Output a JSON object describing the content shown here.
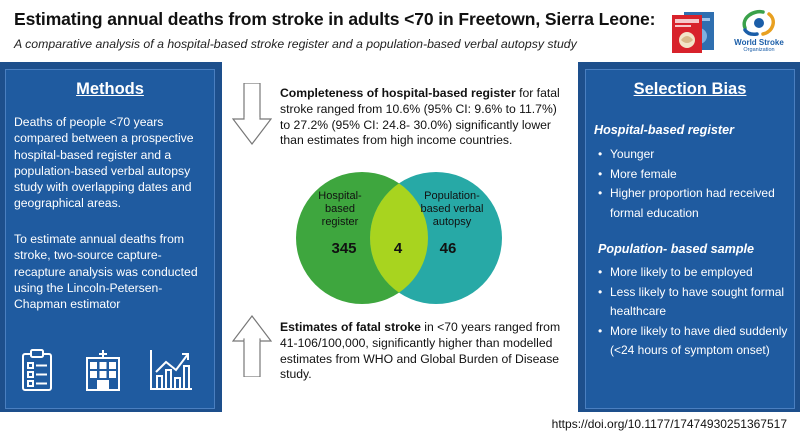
{
  "header": {
    "title": "Estimating annual deaths from stroke in adults <70 in Freetown, Sierra Leone:",
    "subtitle": "A comparative analysis of a hospital-based stroke register and a population-based verbal autopsy study",
    "journal_logo_icon": "journal-cover-icon",
    "org_logo_icon": "world-stroke-organization-logo",
    "org_name": "World Stroke",
    "org_sub": "Organization"
  },
  "methods": {
    "title": "Methods",
    "paragraph1": "Deaths of people <70 years compared between a prospective hospital-based register and a population-based verbal autopsy study with overlapping dates and geographical areas.",
    "paragraph2": "To estimate annual deaths from stroke, two-source capture-recapture analysis was conducted using the Lincoln-Petersen-Chapman estimator",
    "icons": [
      "clipboard-icon",
      "hospital-icon",
      "line-chart-icon"
    ]
  },
  "center": {
    "completeness_bold": "Completeness of hospital-based register",
    "completeness_rest": " for fatal stroke ranged from 10.6% (95% CI: 9.6% to 11.7%) to 27.2% (95% CI: 24.8- 30.0%) significantly lower than estimates from high income countries.",
    "venn": {
      "left_label": "Hospital-based register",
      "right_label": "Population-based verbal autopsy",
      "left_only": "345",
      "overlap": "4",
      "right_only": "46",
      "left_color": "#3ea63e",
      "overlap_color": "#a8d41f",
      "right_color": "#27a9a6"
    },
    "estimates_bold": "Estimates of fatal stroke",
    "estimates_rest": " in <70 years ranged from 41-106/100,000, significantly higher than modelled estimates from WHO and Global Burden of Disease study."
  },
  "bias": {
    "title": "Selection Bias",
    "hospital_heading": "Hospital-based register",
    "hospital_items": [
      "Younger",
      "More female",
      "Higher proportion had received formal education"
    ],
    "population_heading": "Population- based sample",
    "population_items": [
      "More likely to be employed",
      "Less likely to have sought formal healthcare",
      "More likely to have died suddenly (<24 hours of symptom onset)"
    ]
  },
  "footer": {
    "doi": "https://doi.org/10.1177/17474930251367517"
  },
  "colors": {
    "panel_blue": "#1f5ba0",
    "bar_blue": "#1d4f8c"
  }
}
